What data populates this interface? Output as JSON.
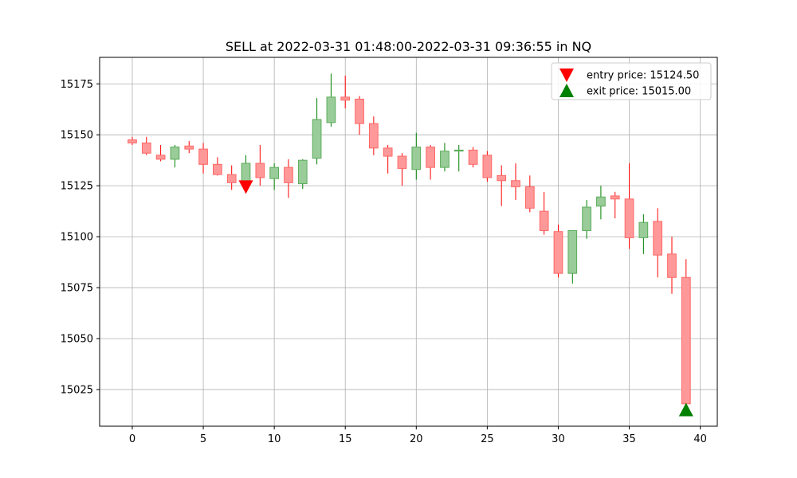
{
  "chart_data": {
    "type": "candlestick",
    "title": "SELL at 2022-03-31 01:48:00-2022-03-31 09:36:55 in NQ",
    "xlim": [
      -2.3,
      41.2
    ],
    "ylim": [
      15007,
      15188
    ],
    "x_ticks": [
      0,
      5,
      10,
      15,
      20,
      25,
      30,
      35,
      40
    ],
    "y_ticks": [
      15025,
      15050,
      15075,
      15100,
      15125,
      15150,
      15175
    ],
    "grid": true,
    "legend_position": "top-right",
    "colors": {
      "up_fill": "#99cc99",
      "up_edge": "#5aab5a",
      "up_wick": "#008000",
      "down_fill": "#ff9999",
      "down_edge": "#ff6666",
      "down_wick": "#ff0000",
      "entry_marker": "#ff0000",
      "exit_marker": "#008000"
    },
    "candles": [
      {
        "x": 0,
        "open": 15147.5,
        "high": 15149.0,
        "low": 15145.0,
        "close": 15146.0
      },
      {
        "x": 1,
        "open": 15146.0,
        "high": 15149.0,
        "low": 15140.0,
        "close": 15141.0
      },
      {
        "x": 2,
        "open": 15140.0,
        "high": 15145.0,
        "low": 15137.0,
        "close": 15138.0
      },
      {
        "x": 3,
        "open": 15138.0,
        "high": 15145.0,
        "low": 15134.0,
        "close": 15144.0
      },
      {
        "x": 4,
        "open": 15144.5,
        "high": 15147.0,
        "low": 15141.0,
        "close": 15143.0
      },
      {
        "x": 5,
        "open": 15143.0,
        "high": 15146.0,
        "low": 15131.0,
        "close": 15135.5
      },
      {
        "x": 6,
        "open": 15135.5,
        "high": 15139.0,
        "low": 15130.0,
        "close": 15130.5
      },
      {
        "x": 7,
        "open": 15130.5,
        "high": 15135.0,
        "low": 15123.0,
        "close": 15126.5
      },
      {
        "x": 8,
        "open": 15126.5,
        "high": 15140.0,
        "low": 15124.0,
        "close": 15136.0
      },
      {
        "x": 9,
        "open": 15136.0,
        "high": 15145.0,
        "low": 15125.0,
        "close": 15129.0
      },
      {
        "x": 10,
        "open": 15128.5,
        "high": 15136.0,
        "low": 15123.0,
        "close": 15134.0
      },
      {
        "x": 11,
        "open": 15134.0,
        "high": 15138.0,
        "low": 15119.0,
        "close": 15126.5
      },
      {
        "x": 12,
        "open": 15126.0,
        "high": 15138.0,
        "low": 15123.5,
        "close": 15137.5
      },
      {
        "x": 13,
        "open": 15138.5,
        "high": 15168.0,
        "low": 15135.5,
        "close": 15157.5
      },
      {
        "x": 14,
        "open": 15156.0,
        "high": 15180.0,
        "low": 15154.0,
        "close": 15168.5
      },
      {
        "x": 15,
        "open": 15168.5,
        "high": 15179.0,
        "low": 15163.0,
        "close": 15167.0
      },
      {
        "x": 16,
        "open": 15167.5,
        "high": 15169.0,
        "low": 15150.0,
        "close": 15155.5
      },
      {
        "x": 17,
        "open": 15155.5,
        "high": 15159.0,
        "low": 15140.0,
        "close": 15143.5
      },
      {
        "x": 18,
        "open": 15143.5,
        "high": 15145.0,
        "low": 15131.0,
        "close": 15139.5
      },
      {
        "x": 19,
        "open": 15139.5,
        "high": 15141.0,
        "low": 15125.0,
        "close": 15133.5
      },
      {
        "x": 20,
        "open": 15133.0,
        "high": 15151.0,
        "low": 15128.0,
        "close": 15144.0
      },
      {
        "x": 21,
        "open": 15144.0,
        "high": 15145.0,
        "low": 15128.0,
        "close": 15134.0
      },
      {
        "x": 22,
        "open": 15134.0,
        "high": 15146.0,
        "low": 15132.0,
        "close": 15142.0
      },
      {
        "x": 23,
        "open": 15142.0,
        "high": 15145.0,
        "low": 15132.0,
        "close": 15142.5
      },
      {
        "x": 24,
        "open": 15142.5,
        "high": 15144.0,
        "low": 15134.0,
        "close": 15135.5
      },
      {
        "x": 25,
        "open": 15140.0,
        "high": 15142.0,
        "low": 15127.0,
        "close": 15129.0
      },
      {
        "x": 26,
        "open": 15130.0,
        "high": 15135.0,
        "low": 15115.0,
        "close": 15127.5
      },
      {
        "x": 27,
        "open": 15127.5,
        "high": 15136.0,
        "low": 15118.0,
        "close": 15124.5
      },
      {
        "x": 28,
        "open": 15124.5,
        "high": 15130.0,
        "low": 15112.0,
        "close": 15114.0
      },
      {
        "x": 29,
        "open": 15112.5,
        "high": 15122.0,
        "low": 15101.0,
        "close": 15103.0
      },
      {
        "x": 30,
        "open": 15102.5,
        "high": 15106.0,
        "low": 15080.0,
        "close": 15082.0
      },
      {
        "x": 31,
        "open": 15082.0,
        "high": 15103.0,
        "low": 15077.0,
        "close": 15103.0
      },
      {
        "x": 32,
        "open": 15103.0,
        "high": 15118.0,
        "low": 15099.0,
        "close": 15114.5
      },
      {
        "x": 33,
        "open": 15115.0,
        "high": 15125.0,
        "low": 15108.5,
        "close": 15119.5
      },
      {
        "x": 34,
        "open": 15120.0,
        "high": 15122.0,
        "low": 15109.0,
        "close": 15118.5
      },
      {
        "x": 35,
        "open": 15118.5,
        "high": 15136.0,
        "low": 15094.0,
        "close": 15099.5
      },
      {
        "x": 36,
        "open": 15099.5,
        "high": 15111.0,
        "low": 15091.5,
        "close": 15107.0
      },
      {
        "x": 37,
        "open": 15107.5,
        "high": 15114.0,
        "low": 15080.0,
        "close": 15091.0
      },
      {
        "x": 38,
        "open": 15091.5,
        "high": 15100.0,
        "low": 15072.0,
        "close": 15080.0
      },
      {
        "x": 39,
        "open": 15080.0,
        "high": 15089.0,
        "low": 15016.0,
        "close": 15018.0
      }
    ],
    "entry": {
      "x": 8,
      "price": 15124.5,
      "label": "entry price: 15124.50"
    },
    "exit": {
      "x": 39,
      "price": 15015.0,
      "label": "exit price: 15015.00"
    }
  }
}
